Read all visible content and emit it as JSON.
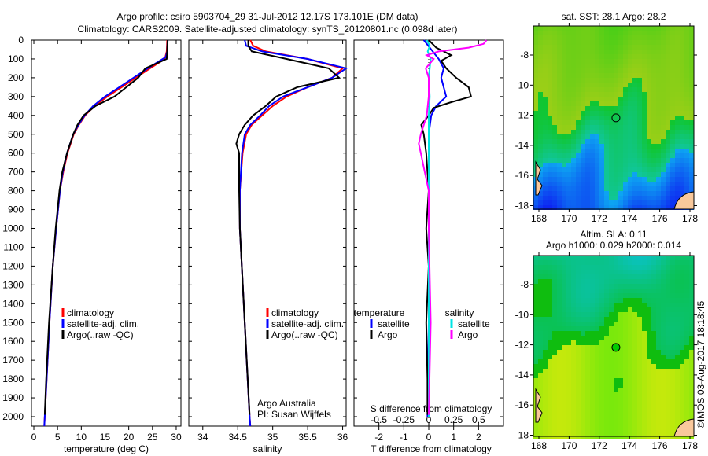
{
  "title_line1": "Argo profile: csiro 5903704_29 31-Jul-2012 12.17S 173.101E (DM data)",
  "title_line2": "Climatology: CARS2009. Satellite-adjusted climatology: synTS_20120801.nc (0.098d later)",
  "colors": {
    "climatology": "#ff0000",
    "satellite": "#0000ff",
    "argo": "#000000",
    "s_satellite": "#00e5e5",
    "s_argo": "#ff00ff"
  },
  "chart_data": [
    {
      "type": "line",
      "name": "temperature",
      "xlabel": "temperature (deg C)",
      "ylabel": "",
      "xlim": [
        -0.5,
        31
      ],
      "ylim": [
        2050,
        0
      ],
      "xticks": [
        "0",
        "5",
        "10",
        "15",
        "20",
        "25",
        "30"
      ],
      "xtick_values": [
        0,
        5,
        10,
        15,
        20,
        25,
        30
      ],
      "yticks": [
        "0",
        "100",
        "200",
        "300",
        "400",
        "500",
        "600",
        "700",
        "800",
        "900",
        "1000",
        "1100",
        "1200",
        "1300",
        "1400",
        "1500",
        "1600",
        "1700",
        "1800",
        "1900",
        "2000"
      ],
      "legend": [
        "climatology",
        "satellite-adj. clim.",
        "Argo(..raw -QC)"
      ],
      "series": [
        {
          "name": "climatology",
          "color": "#ff0000",
          "depth": [
            0,
            60,
            100,
            150,
            200,
            250,
            300,
            350,
            400,
            450,
            500,
            600,
            700,
            800,
            1000,
            1200,
            1500,
            1800,
            2000,
            2050
          ],
          "values": [
            28.1,
            28.0,
            27.6,
            24.5,
            21.5,
            18.5,
            15.5,
            12.8,
            10.8,
            9.5,
            8.4,
            7.1,
            6.2,
            5.5,
            4.7,
            4.0,
            3.3,
            2.7,
            2.3,
            2.2
          ]
        },
        {
          "name": "satellite-adj. clim.",
          "color": "#0000ff",
          "depth": [
            0,
            60,
            90,
            150,
            200,
            250,
            300,
            350,
            400,
            450,
            500,
            600,
            700,
            800,
            1000,
            1200,
            1500,
            1800,
            2000,
            2050
          ],
          "values": [
            28.2,
            28.1,
            27.8,
            24.0,
            21.0,
            18.0,
            15.0,
            12.5,
            10.7,
            9.4,
            8.3,
            7.0,
            6.1,
            5.5,
            4.7,
            4.0,
            3.3,
            2.7,
            2.3,
            2.2
          ]
        },
        {
          "name": "Argo",
          "color": "#000000",
          "depth": [
            0,
            60,
            100,
            150,
            200,
            250,
            300,
            350,
            400,
            450,
            500,
            600,
            700,
            800,
            1000,
            1200,
            1500,
            1800,
            1990
          ],
          "values": [
            28.2,
            28.1,
            28.0,
            23.5,
            22.0,
            19.5,
            17.0,
            13.0,
            10.5,
            9.2,
            8.3,
            7.0,
            6.0,
            5.4,
            4.6,
            4.0,
            3.2,
            2.6,
            2.3
          ]
        }
      ]
    },
    {
      "type": "line",
      "name": "salinity",
      "xlabel": "salinity",
      "xlim": [
        33.8,
        36.05
      ],
      "ylim": [
        2050,
        0
      ],
      "xticks": [
        "34",
        "34.5",
        "35",
        "35.5",
        "36"
      ],
      "xtick_values": [
        34,
        34.5,
        35,
        35.5,
        36
      ],
      "legend": [
        "climatology",
        "satellite-adj. clim.",
        "Argo(..raw -QC)"
      ],
      "annotation": [
        "Argo Australia",
        "PI: Susan Wijffels"
      ],
      "series": [
        {
          "name": "climatology",
          "color": "#ff0000",
          "depth": [
            0,
            30,
            60,
            100,
            150,
            200,
            250,
            300,
            350,
            400,
            450,
            500,
            600,
            800,
            1000,
            1500,
            2000,
            2050
          ],
          "values": [
            34.68,
            34.72,
            34.9,
            35.5,
            36.0,
            35.85,
            35.5,
            35.2,
            35.0,
            34.85,
            34.7,
            34.62,
            34.57,
            34.53,
            34.53,
            34.6,
            34.67,
            34.68
          ]
        },
        {
          "name": "satellite-adj. clim.",
          "color": "#0000ff",
          "depth": [
            0,
            30,
            60,
            100,
            150,
            200,
            250,
            300,
            350,
            400,
            450,
            500,
            600,
            800,
            1000,
            1500,
            2000,
            2050
          ],
          "values": [
            34.6,
            34.62,
            34.85,
            35.5,
            36.05,
            35.85,
            35.5,
            35.15,
            34.95,
            34.82,
            34.68,
            34.6,
            34.56,
            34.53,
            34.53,
            34.6,
            34.67,
            34.68
          ]
        },
        {
          "name": "Argo",
          "color": "#000000",
          "depth": [
            0,
            30,
            60,
            100,
            150,
            200,
            250,
            300,
            350,
            400,
            450,
            500,
            550,
            600,
            800,
            1000,
            1500,
            1990
          ],
          "values": [
            34.65,
            34.65,
            34.7,
            35.2,
            35.8,
            35.95,
            35.35,
            35.05,
            34.9,
            34.72,
            34.6,
            34.52,
            34.48,
            34.52,
            34.52,
            34.53,
            34.6,
            34.67
          ]
        }
      ]
    },
    {
      "type": "line",
      "name": "difference",
      "xlabel": "T difference from climatology",
      "x2label": "S difference from climatology",
      "xlim": [
        -3,
        3
      ],
      "ylim": [
        2050,
        0
      ],
      "xticks": [
        "-2",
        "-1",
        "0",
        "1",
        "2"
      ],
      "xtick_values": [
        -2,
        -1,
        0,
        1,
        2
      ],
      "x2ticks": [
        "-0.5",
        "-0.25",
        "0",
        "0.25",
        "0.5"
      ],
      "x2tick_values": [
        -0.5,
        -0.25,
        0,
        0.25,
        0.5
      ],
      "legend_temperature": {
        "title": "temperature",
        "items": [
          "satellite",
          "Argo"
        ]
      },
      "legend_salinity": {
        "title": "salinity",
        "items": [
          "satellite",
          "Argo"
        ]
      },
      "series": [
        {
          "name": "T satellite",
          "color": "#0000ff",
          "axis": "T",
          "depth": [
            0,
            50,
            100,
            150,
            200,
            250,
            300,
            350,
            400,
            500,
            700,
            1000,
            1500,
            2000
          ],
          "values": [
            -0.2,
            0.1,
            0.4,
            0.6,
            0.5,
            0.6,
            0.7,
            0.3,
            0.1,
            0,
            0,
            0,
            0,
            -0.05
          ]
        },
        {
          "name": "T Argo",
          "color": "#000000",
          "axis": "T",
          "depth": [
            0,
            40,
            80,
            110,
            150,
            200,
            250,
            300,
            330,
            360,
            400,
            450,
            500,
            600,
            800,
            1000,
            1200,
            1500,
            1800,
            1990
          ],
          "values": [
            0,
            0.3,
            0.9,
            0.5,
            0.7,
            1.1,
            1.6,
            1.7,
            0.9,
            0.2,
            0,
            -0.3,
            -0.2,
            -0.1,
            0,
            -0.1,
            0,
            -0.1,
            -0.05,
            -0.05
          ]
        },
        {
          "name": "S satellite",
          "color": "#00e5e5",
          "axis": "S",
          "depth": [
            0,
            30,
            60,
            100,
            200,
            300,
            400,
            500,
            700,
            1000,
            1500,
            2000
          ],
          "values": [
            -0.02,
            0.01,
            -0.01,
            0.02,
            0.0,
            0.01,
            0.0,
            0,
            0,
            0,
            0,
            0
          ]
        },
        {
          "name": "S Argo",
          "color": "#ff00ff",
          "axis": "S",
          "depth": [
            0,
            20,
            40,
            60,
            80,
            100,
            150,
            200,
            300,
            400,
            500,
            550,
            600,
            700,
            800,
            1000,
            1500,
            1990
          ],
          "values": [
            0.58,
            0.55,
            0.4,
            0.1,
            -0.02,
            0.05,
            -0.03,
            0,
            0.0,
            -0.02,
            -0.08,
            -0.1,
            -0.08,
            -0.04,
            0,
            0,
            0.02,
            0
          ]
        }
      ]
    }
  ],
  "map_sst": {
    "title": "sat. SST: 28.1 Argo: 28.2",
    "xticks": [
      "168",
      "170",
      "172",
      "174",
      "176",
      "178"
    ],
    "yticks": [
      "-8",
      "-10",
      "-12",
      "-14",
      "-16",
      "-18"
    ],
    "argo_lon": 173.1,
    "argo_lat": -12.17
  },
  "map_sla": {
    "title1": "Altim. SLA: 0.11",
    "title2": "Argo h1000: 0.029 h2000: 0.014",
    "xticks": [
      "168",
      "170",
      "172",
      "174",
      "176",
      "178"
    ],
    "yticks": [
      "-8",
      "-10",
      "-12",
      "-14",
      "-16",
      "-18"
    ],
    "argo_lon": 173.1,
    "argo_lat": -12.17
  },
  "credit": "©IMOS 03-Aug-2017 18:18:45"
}
